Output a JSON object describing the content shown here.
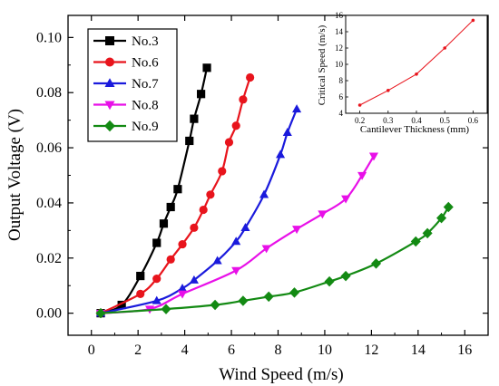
{
  "chart_data": [
    {
      "type": "line",
      "xlabel": "Wind Speed (m/s)",
      "ylabel": "Output Voltage (V)",
      "xlim": [
        -1,
        17
      ],
      "ylim": [
        -0.008,
        0.108
      ],
      "x_ticks": [
        0,
        2,
        4,
        6,
        8,
        10,
        12,
        14,
        16
      ],
      "x_tick_labels": [
        "0",
        "2",
        "4",
        "6",
        "8",
        "10",
        "12",
        "14",
        "16"
      ],
      "y_ticks": [
        0.0,
        0.02,
        0.04,
        0.06,
        0.08,
        0.1
      ],
      "y_tick_labels": [
        "0.00",
        "0.02",
        "0.04",
        "0.06",
        "0.08",
        "0.10"
      ],
      "grid": false,
      "legend_position": "top-left",
      "series": [
        {
          "name": "No.3",
          "color": "#000000",
          "marker": "square",
          "x": [
            0.4,
            1.3,
            2.1,
            2.8,
            3.1,
            3.4,
            3.7,
            4.2,
            4.4,
            4.7,
            4.95
          ],
          "y": [
            0.0,
            0.003,
            0.0135,
            0.0255,
            0.0325,
            0.0385,
            0.045,
            0.0625,
            0.0705,
            0.0795,
            0.089
          ]
        },
        {
          "name": "No.6",
          "color": "#e8141c",
          "marker": "circle",
          "x": [
            0.4,
            2.1,
            2.8,
            3.4,
            3.9,
            4.4,
            4.8,
            5.1,
            5.6,
            5.9,
            6.2,
            6.5,
            6.8
          ],
          "y": [
            0.0,
            0.007,
            0.0125,
            0.0195,
            0.025,
            0.031,
            0.0375,
            0.043,
            0.0515,
            0.062,
            0.068,
            0.0775,
            0.0855
          ]
        },
        {
          "name": "No.7",
          "color": "#1a1adc",
          "marker": "triangle-up",
          "x": [
            0.4,
            2.8,
            3.9,
            4.4,
            5.4,
            6.2,
            6.6,
            7.4,
            8.1,
            8.4,
            8.8
          ],
          "y": [
            0.0,
            0.0045,
            0.009,
            0.012,
            0.019,
            0.026,
            0.031,
            0.043,
            0.0575,
            0.0655,
            0.074
          ]
        },
        {
          "name": "No.8",
          "color": "#e810e8",
          "marker": "triangle-down",
          "x": [
            0.4,
            2.5,
            3.9,
            6.2,
            7.5,
            8.8,
            9.9,
            10.9,
            11.6,
            12.1
          ],
          "y": [
            0.0,
            0.0015,
            0.007,
            0.0155,
            0.0235,
            0.0305,
            0.036,
            0.0415,
            0.05,
            0.057
          ]
        },
        {
          "name": "No.9",
          "color": "#138a13",
          "marker": "diamond",
          "x": [
            0.4,
            3.2,
            5.3,
            6.5,
            7.6,
            8.7,
            10.2,
            10.9,
            12.2,
            13.9,
            14.4,
            15.0,
            15.3
          ],
          "y": [
            0.0,
            0.0015,
            0.003,
            0.0045,
            0.006,
            0.0075,
            0.0115,
            0.0135,
            0.018,
            0.026,
            0.029,
            0.0345,
            0.0385
          ]
        }
      ]
    },
    {
      "type": "line",
      "xlabel": "Cantilever Thickness (mm)",
      "ylabel": "Critical Speed (m/s)",
      "xlim": [
        0.15,
        0.65
      ],
      "ylim": [
        4,
        16
      ],
      "x_ticks": [
        0.2,
        0.3,
        0.4,
        0.5,
        0.6
      ],
      "x_tick_labels": [
        "0.2",
        "0.3",
        "0.4",
        "0.5",
        "0.6"
      ],
      "y_ticks": [
        4,
        6,
        8,
        10,
        12,
        14,
        16
      ],
      "y_tick_labels": [
        "4",
        "6",
        "8",
        "10",
        "12",
        "14",
        "16"
      ],
      "grid": false,
      "series": [
        {
          "color": "#e8141c",
          "marker": "circle",
          "x": [
            0.2,
            0.3,
            0.4,
            0.5,
            0.6
          ],
          "y": [
            5.0,
            6.8,
            8.8,
            12.0,
            15.4
          ]
        }
      ]
    }
  ]
}
